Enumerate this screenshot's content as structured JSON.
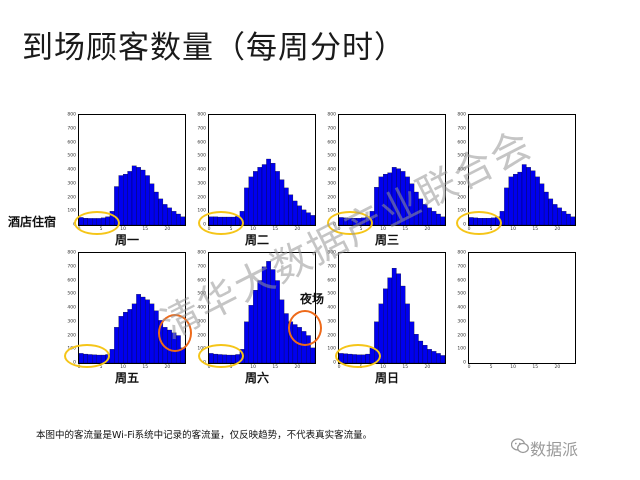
{
  "title": "到场顾客数量（每周分时）",
  "annotations": {
    "hotel": "酒店住宿",
    "night": "夜场"
  },
  "colors": {
    "bar": "#0000ee",
    "hotel_ellipse": "#f5c518",
    "night_ellipse": "#ee6a1a"
  },
  "watermark": "清华大数据产业联合会",
  "footnote": "本图中的客流量是Wi-Fi系统中记录的客流量，仅反映趋势，不代表真实客流量。",
  "brand": "数据派",
  "chart_data": [
    {
      "type": "bar",
      "label": "周一",
      "xlim": [
        0,
        24
      ],
      "ylim": [
        0,
        800
      ],
      "yticks": [
        0,
        100,
        200,
        300,
        400,
        500,
        600,
        700,
        800
      ],
      "xticks": [
        0,
        5,
        10,
        15,
        20
      ],
      "values": [
        55,
        50,
        48,
        48,
        48,
        52,
        60,
        100,
        280,
        360,
        370,
        390,
        430,
        420,
        400,
        360,
        300,
        240,
        190,
        150,
        125,
        100,
        80,
        60
      ]
    },
    {
      "type": "bar",
      "label": "周二",
      "xlim": [
        0,
        24
      ],
      "ylim": [
        0,
        800
      ],
      "yticks": [
        0,
        100,
        200,
        300,
        400,
        500,
        600,
        700,
        800
      ],
      "xticks": [
        0,
        5,
        10,
        15,
        20
      ],
      "values": [
        60,
        60,
        58,
        58,
        58,
        58,
        65,
        100,
        270,
        350,
        390,
        420,
        440,
        480,
        450,
        390,
        330,
        270,
        220,
        175,
        140,
        110,
        90,
        70
      ]
    },
    {
      "type": "bar",
      "label": "周三",
      "xlim": [
        0,
        24
      ],
      "ylim": [
        0,
        800
      ],
      "yticks": [
        0,
        100,
        200,
        300,
        400,
        500,
        600,
        700,
        800
      ],
      "xticks": [
        0,
        5,
        10,
        15,
        20
      ],
      "values": [
        55,
        52,
        50,
        50,
        50,
        52,
        60,
        100,
        275,
        350,
        370,
        380,
        420,
        410,
        390,
        350,
        300,
        240,
        190,
        150,
        125,
        100,
        80,
        60
      ]
    },
    {
      "type": "bar",
      "label": "",
      "xlim": [
        0,
        24
      ],
      "ylim": [
        0,
        800
      ],
      "yticks": [
        0,
        100,
        200,
        300,
        400,
        500,
        600,
        700,
        800
      ],
      "xticks": [
        0,
        5,
        10,
        15,
        20
      ],
      "values": [
        55,
        52,
        50,
        50,
        50,
        52,
        60,
        100,
        270,
        350,
        370,
        385,
        440,
        420,
        395,
        350,
        300,
        240,
        190,
        150,
        125,
        100,
        80,
        60
      ]
    },
    {
      "type": "bar",
      "label": "周五",
      "xlim": [
        0,
        24
      ],
      "ylim": [
        0,
        800
      ],
      "yticks": [
        0,
        100,
        200,
        300,
        400,
        500,
        600,
        700,
        800
      ],
      "xticks": [
        0,
        5,
        10,
        15,
        20
      ],
      "values": [
        70,
        65,
        62,
        60,
        58,
        58,
        62,
        100,
        260,
        340,
        370,
        390,
        430,
        500,
        480,
        460,
        430,
        380,
        310,
        260,
        240,
        220,
        200,
        110
      ]
    },
    {
      "type": "bar",
      "label": "周六",
      "xlim": [
        0,
        24
      ],
      "ylim": [
        0,
        800
      ],
      "yticks": [
        0,
        100,
        200,
        300,
        400,
        500,
        600,
        700,
        800
      ],
      "xticks": [
        0,
        5,
        10,
        15,
        20
      ],
      "values": [
        70,
        65,
        62,
        60,
        58,
        58,
        62,
        100,
        300,
        420,
        530,
        600,
        700,
        740,
        680,
        600,
        460,
        360,
        300,
        280,
        260,
        230,
        200,
        110
      ]
    },
    {
      "type": "bar",
      "label": "周日",
      "xlim": [
        0,
        24
      ],
      "ylim": [
        0,
        800
      ],
      "yticks": [
        0,
        100,
        200,
        300,
        400,
        500,
        600,
        700,
        800
      ],
      "xticks": [
        0,
        5,
        10,
        15,
        20
      ],
      "values": [
        70,
        68,
        65,
        62,
        60,
        60,
        65,
        110,
        300,
        430,
        540,
        620,
        690,
        650,
        560,
        430,
        300,
        210,
        160,
        130,
        100,
        85,
        70,
        55
      ]
    },
    {
      "type": "bar",
      "label": "",
      "xlim": [
        0,
        24
      ],
      "ylim": [
        0,
        800
      ],
      "yticks": [
        0,
        100,
        200,
        300,
        400,
        500,
        600,
        700,
        800
      ],
      "xticks": [
        0,
        5,
        10,
        15,
        20
      ],
      "values": []
    }
  ]
}
